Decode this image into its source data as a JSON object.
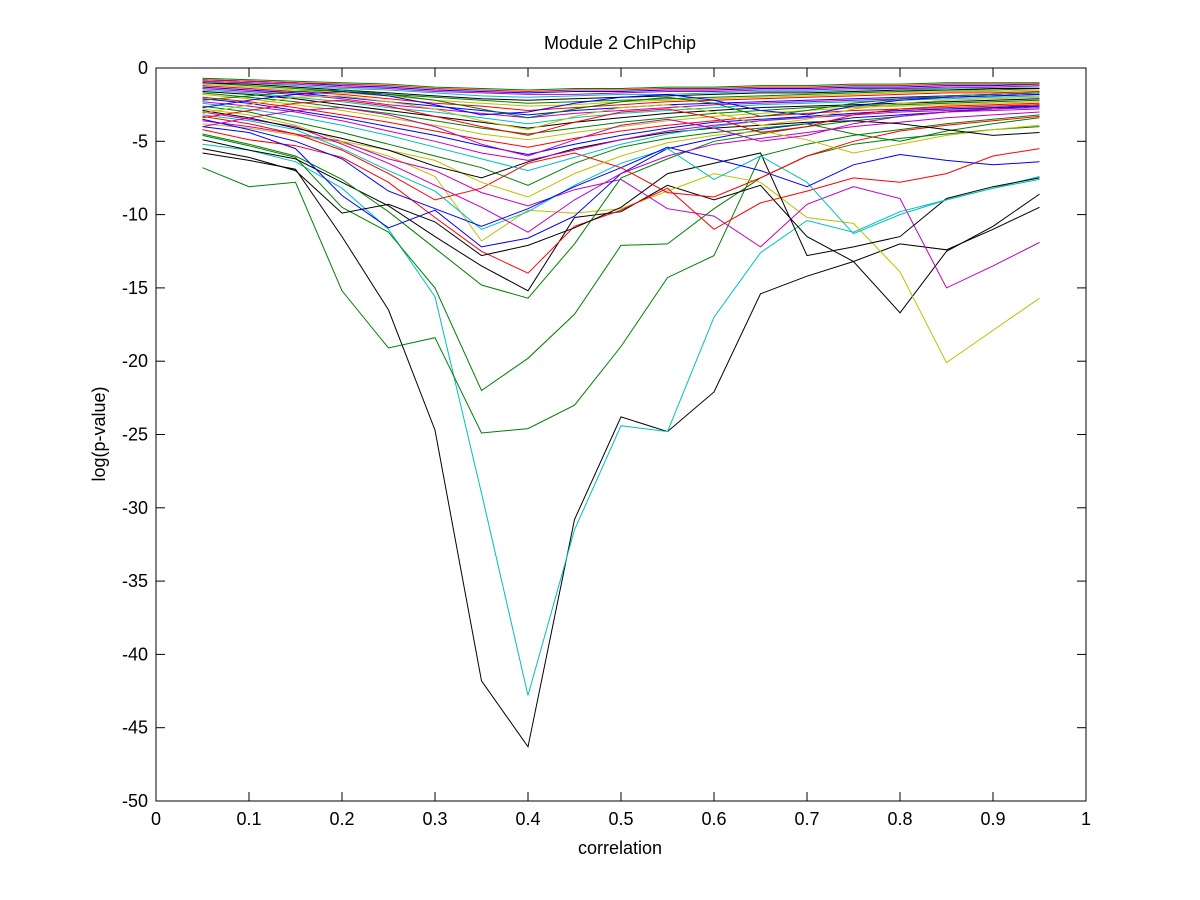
{
  "chart_data": {
    "type": "line",
    "title": "Module 2 ChIPchip",
    "xlabel": "correlation",
    "ylabel": "log(p-value)",
    "xlim": [
      0,
      1
    ],
    "ylim": [
      -50,
      0
    ],
    "xticks": [
      0,
      0.1,
      0.2,
      0.3,
      0.4,
      0.5,
      0.6,
      0.7,
      0.8,
      0.9,
      1
    ],
    "xtick_labels": [
      "0",
      "0.1",
      "0.2",
      "0.3",
      "0.4",
      "0.5",
      "0.6",
      "0.7",
      "0.8",
      "0.9",
      "1"
    ],
    "yticks": [
      0,
      -5,
      -10,
      -15,
      -20,
      -25,
      -30,
      -35,
      -40,
      -45,
      -50
    ],
    "ytick_labels": [
      "0",
      "-5",
      "-10",
      "-15",
      "-20",
      "-25",
      "-30",
      "-35",
      "-40",
      "-45",
      "-50"
    ],
    "grid": false,
    "legend": "none",
    "x": [
      0.05,
      0.1,
      0.15,
      0.2,
      0.25,
      0.3,
      0.35,
      0.4,
      0.45,
      0.5,
      0.55,
      0.6,
      0.65,
      0.7,
      0.75,
      0.8,
      0.85,
      0.9,
      0.95
    ],
    "series": [
      {
        "color": "#000000",
        "values": [
          -5.8,
          -6.3,
          -6.9,
          -11.5,
          -16.5,
          -24.7,
          -41.8,
          -46.3,
          -30.8,
          -23.8,
          -24.8,
          -22.1,
          -15.4,
          -14.2,
          -13.2,
          -12.0,
          -12.4,
          -11.0,
          -9.5
        ]
      },
      {
        "color": "#00bfbf",
        "values": [
          -5.2,
          -5.6,
          -6.4,
          -8.2,
          -11.0,
          -15.6,
          -29.0,
          -42.8,
          -31.5,
          -24.4,
          -24.8,
          -17.0,
          -12.6,
          -10.4,
          -11.2,
          -9.8,
          -9.0,
          -8.2,
          -7.4
        ]
      },
      {
        "color": "#007f00",
        "values": [
          -6.8,
          -8.1,
          -7.8,
          -15.2,
          -19.1,
          -18.4,
          -24.9,
          -24.6,
          -23.0,
          -19.0,
          -14.3,
          -12.8,
          -6.0,
          -5.2,
          -4.6,
          -4.2,
          -3.8,
          -3.5,
          -3.2
        ]
      },
      {
        "color": "#007f00",
        "values": [
          -4.6,
          -5.3,
          -6.1,
          -9.5,
          -11.2,
          -15.0,
          -22.0,
          -19.8,
          -16.8,
          -12.1,
          -12.0,
          -9.6,
          -7.5,
          -6.0,
          -5.2,
          -4.8,
          -4.5,
          -4.2,
          -4.0
        ]
      },
      {
        "color": "#000000",
        "values": [
          -4.9,
          -5.6,
          -6.2,
          -7.8,
          -9.4,
          -11.5,
          -13.5,
          -15.2,
          -10.2,
          -9.8,
          -8.0,
          -9.0,
          -8.0,
          -11.5,
          -13.2,
          -16.7,
          -12.5,
          -10.8,
          -8.6
        ]
      },
      {
        "color": "#bfbf00",
        "values": [
          -3.8,
          -4.1,
          -4.6,
          -5.1,
          -6.0,
          -7.4,
          -11.8,
          -9.7,
          -9.9,
          -9.6,
          -8.4,
          -7.2,
          -7.8,
          -10.2,
          -10.6,
          -13.9,
          -20.1,
          -17.9,
          -15.7
        ]
      },
      {
        "color": "#bf00bf",
        "values": [
          -3.6,
          -4.0,
          -4.5,
          -5.0,
          -6.2,
          -7.0,
          -8.5,
          -9.4,
          -8.3,
          -7.6,
          -9.6,
          -10.1,
          -12.2,
          -9.3,
          -8.1,
          -8.9,
          -15.0,
          -13.5,
          -11.9
        ]
      },
      {
        "color": "#ff0000",
        "values": [
          -4.2,
          -4.9,
          -5.3,
          -6.1,
          -7.8,
          -10.2,
          -12.5,
          -14.0,
          -10.8,
          -9.7,
          -8.2,
          -11.0,
          -9.2,
          -8.4,
          -7.5,
          -7.8,
          -7.2,
          -6.0,
          -5.5
        ]
      },
      {
        "color": "#007f00",
        "values": [
          -4.5,
          -5.2,
          -6.0,
          -7.6,
          -9.8,
          -12.3,
          -14.8,
          -15.7,
          -12.0,
          -7.5,
          -6.2,
          -5.0,
          -4.5,
          -4.0,
          -3.6,
          -3.3,
          -3.0,
          -2.7,
          -2.5
        ]
      },
      {
        "color": "#000000",
        "values": [
          -5.5,
          -6.1,
          -7.0,
          -9.9,
          -9.3,
          -10.5,
          -12.8,
          -12.1,
          -10.9,
          -9.5,
          -7.2,
          -6.5,
          -5.8,
          -12.8,
          -12.2,
          -11.5,
          -8.9,
          -8.1,
          -7.5
        ]
      },
      {
        "color": "#0000ff",
        "values": [
          -4.0,
          -4.4,
          -5.5,
          -8.7,
          -10.9,
          -9.7,
          -12.2,
          -11.6,
          -10.1,
          -7.2,
          -5.5,
          -4.8,
          -4.2,
          -3.8,
          -3.4,
          -3.2,
          -3.0,
          -2.8,
          -2.6
        ]
      },
      {
        "color": "#00bfbf",
        "values": [
          -3.2,
          -3.6,
          -4.2,
          -5.5,
          -7.0,
          -8.4,
          -11.0,
          -9.8,
          -8.0,
          -6.5,
          -5.5,
          -7.6,
          -6.0,
          -7.8,
          -11.3,
          -10.0,
          -9.0,
          -8.2,
          -7.6
        ]
      },
      {
        "color": "#bf00bf",
        "values": [
          -3.0,
          -3.5,
          -4.0,
          -5.2,
          -6.5,
          -8.0,
          -9.5,
          -11.2,
          -9.0,
          -7.2,
          -6.0,
          -5.2,
          -4.8,
          -4.4,
          -4.0,
          -3.7,
          -3.4,
          -3.2,
          -3.0
        ]
      },
      {
        "color": "#0000ff",
        "values": [
          -3.5,
          -4.2,
          -5.0,
          -6.2,
          -8.4,
          -9.6,
          -10.8,
          -9.6,
          -8.1,
          -6.8,
          -5.4,
          -6.2,
          -7.0,
          -8.1,
          -6.6,
          -5.9,
          -6.3,
          -6.6,
          -6.4
        ]
      },
      {
        "color": "#ff0000",
        "values": [
          -3.3,
          -3.8,
          -4.5,
          -5.6,
          -7.2,
          -9.0,
          -8.2,
          -6.5,
          -5.8,
          -6.8,
          -8.5,
          -8.8,
          -7.5,
          -6.0,
          -5.0,
          -4.3,
          -3.9,
          -3.6,
          -3.3
        ]
      },
      {
        "color": "#bfbf00",
        "values": [
          -2.8,
          -3.2,
          -3.9,
          -5.0,
          -5.6,
          -6.3,
          -7.8,
          -8.8,
          -7.2,
          -6.0,
          -5.1,
          -4.6,
          -4.3,
          -4.9,
          -5.8,
          -5.2,
          -4.6,
          -4.2,
          -3.9
        ]
      },
      {
        "color": "#007f00",
        "values": [
          -2.6,
          -3.0,
          -3.7,
          -4.4,
          -5.2,
          -6.0,
          -6.8,
          -8.0,
          -6.5,
          -5.4,
          -4.8,
          -4.4,
          -4.1,
          -3.8,
          -4.5,
          -5.0,
          -4.3,
          -3.8,
          -3.4
        ]
      },
      {
        "color": "#000000",
        "values": [
          -2.9,
          -3.4,
          -4.1,
          -4.8,
          -5.6,
          -6.7,
          -7.5,
          -6.4,
          -5.5,
          -4.9,
          -4.4,
          -4.1,
          -3.9,
          -3.7,
          -3.6,
          -3.8,
          -4.2,
          -4.6,
          -4.4
        ]
      },
      {
        "color": "#00bfbf",
        "values": [
          -2.4,
          -2.8,
          -3.3,
          -3.9,
          -4.6,
          -5.4,
          -6.2,
          -7.0,
          -6.1,
          -5.2,
          -4.5,
          -4.0,
          -3.6,
          -3.3,
          -3.1,
          -2.9,
          -2.8,
          -2.7,
          -2.6
        ]
      },
      {
        "color": "#bf00bf",
        "values": [
          -2.3,
          -2.6,
          -3.0,
          -3.6,
          -4.3,
          -5.0,
          -5.8,
          -6.3,
          -5.6,
          -4.9,
          -4.3,
          -3.9,
          -3.6,
          -3.4,
          -3.2,
          -3.0,
          -2.9,
          -2.8,
          -2.7
        ]
      },
      {
        "color": "#0000ff",
        "values": [
          -2.1,
          -2.4,
          -2.9,
          -3.4,
          -4.0,
          -4.6,
          -5.3,
          -5.9,
          -5.2,
          -4.6,
          -4.1,
          -3.7,
          -3.5,
          -3.3,
          -3.1,
          -2.9,
          -2.8,
          -2.7,
          -2.6
        ]
      },
      {
        "color": "#ff0000",
        "values": [
          -2.0,
          -2.3,
          -2.7,
          -3.2,
          -3.7,
          -4.3,
          -4.9,
          -5.4,
          -4.8,
          -4.3,
          -3.9,
          -3.6,
          -3.3,
          -3.1,
          -2.9,
          -2.8,
          -2.7,
          -2.6,
          -2.5
        ]
      },
      {
        "color": "#bfbf00",
        "values": [
          -1.8,
          -2.1,
          -2.5,
          -2.9,
          -3.4,
          -3.9,
          -4.5,
          -4.9,
          -4.4,
          -4.0,
          -3.6,
          -3.3,
          -3.1,
          -2.9,
          -2.7,
          -2.6,
          -2.5,
          -2.4,
          -2.3
        ]
      },
      {
        "color": "#007f00",
        "values": [
          -1.7,
          -2.0,
          -2.3,
          -2.7,
          -3.1,
          -3.6,
          -4.1,
          -4.5,
          -4.1,
          -3.7,
          -3.4,
          -3.1,
          -2.9,
          -2.7,
          -2.6,
          -2.5,
          -2.4,
          -2.3,
          -2.2
        ]
      },
      {
        "color": "#000000",
        "values": [
          -1.6,
          -1.8,
          -2.1,
          -2.5,
          -2.9,
          -3.3,
          -3.7,
          -4.1,
          -3.7,
          -3.4,
          -3.1,
          -2.9,
          -2.7,
          -2.6,
          -2.5,
          -2.4,
          -2.3,
          -2.2,
          -2.1
        ]
      },
      {
        "color": "#00bfbf",
        "values": [
          -1.5,
          -1.7,
          -2.0,
          -2.3,
          -2.7,
          -3.0,
          -3.4,
          -3.8,
          -3.4,
          -3.1,
          -2.9,
          -2.7,
          -2.5,
          -2.4,
          -2.3,
          -2.2,
          -2.1,
          -2.0,
          -1.9
        ]
      },
      {
        "color": "#bf00bf",
        "values": [
          -1.4,
          -1.6,
          -1.8,
          -2.1,
          -2.5,
          -2.8,
          -3.1,
          -3.4,
          -3.1,
          -2.9,
          -2.7,
          -2.5,
          -2.4,
          -2.3,
          -2.2,
          -2.1,
          -2.0,
          -1.9,
          -1.8
        ]
      },
      {
        "color": "#0000ff",
        "values": [
          -1.3,
          -1.5,
          -1.7,
          -2.0,
          -2.3,
          -2.6,
          -2.9,
          -3.2,
          -2.9,
          -2.7,
          -2.5,
          -2.4,
          -2.3,
          -2.2,
          -2.1,
          -2.0,
          -1.9,
          -1.8,
          -1.7
        ]
      },
      {
        "color": "#ff0000",
        "values": [
          -1.2,
          -1.4,
          -1.6,
          -1.8,
          -2.1,
          -2.4,
          -2.6,
          -2.9,
          -2.7,
          -2.5,
          -2.3,
          -2.2,
          -2.1,
          -2.0,
          -1.9,
          -1.8,
          -1.7,
          -1.7,
          -1.6
        ]
      },
      {
        "color": "#bfbf00",
        "values": [
          -1.1,
          -1.3,
          -1.5,
          -1.7,
          -1.9,
          -2.2,
          -2.4,
          -2.6,
          -2.5,
          -2.3,
          -2.2,
          -2.1,
          -2.0,
          -1.9,
          -1.8,
          -1.7,
          -1.6,
          -1.6,
          -1.5
        ]
      },
      {
        "color": "#007f00",
        "values": [
          -1.0,
          -1.2,
          -1.4,
          -1.6,
          -1.8,
          -2.0,
          -2.2,
          -2.4,
          -2.3,
          -2.2,
          -2.1,
          -2.0,
          -1.9,
          -1.8,
          -1.7,
          -1.6,
          -1.5,
          -1.5,
          -1.4
        ]
      },
      {
        "color": "#000000",
        "values": [
          -1.0,
          -1.1,
          -1.3,
          -1.5,
          -1.7,
          -1.9,
          -2.1,
          -2.2,
          -2.1,
          -2.0,
          -1.9,
          -1.8,
          -1.7,
          -1.7,
          -1.6,
          -1.5,
          -1.5,
          -1.4,
          -1.4
        ]
      },
      {
        "color": "#00bfbf",
        "values": [
          -0.9,
          -1.0,
          -1.2,
          -1.4,
          -1.5,
          -1.7,
          -1.9,
          -2.0,
          -1.9,
          -1.8,
          -1.8,
          -1.7,
          -1.6,
          -1.6,
          -1.5,
          -1.4,
          -1.4,
          -1.3,
          -1.3
        ]
      },
      {
        "color": "#bf00bf",
        "values": [
          -0.9,
          -1.0,
          -1.1,
          -1.3,
          -1.4,
          -1.6,
          -1.7,
          -1.8,
          -1.8,
          -1.7,
          -1.6,
          -1.6,
          -1.5,
          -1.5,
          -1.4,
          -1.4,
          -1.3,
          -1.3,
          -1.2
        ]
      },
      {
        "color": "#0000ff",
        "values": [
          -0.8,
          -0.9,
          -1.0,
          -1.2,
          -1.3,
          -1.5,
          -1.6,
          -1.7,
          -1.6,
          -1.6,
          -1.5,
          -1.5,
          -1.4,
          -1.4,
          -1.3,
          -1.3,
          -1.2,
          -1.2,
          -1.1
        ]
      },
      {
        "color": "#ff0000",
        "values": [
          -0.8,
          -0.9,
          -1.0,
          -1.1,
          -1.2,
          -1.4,
          -1.5,
          -1.6,
          -1.5,
          -1.5,
          -1.4,
          -1.4,
          -1.3,
          -1.3,
          -1.2,
          -1.2,
          -1.1,
          -1.1,
          -1.1
        ]
      },
      {
        "color": "#007f00",
        "values": [
          -0.7,
          -0.8,
          -0.9,
          -1.0,
          -1.1,
          -1.3,
          -1.4,
          -1.5,
          -1.4,
          -1.4,
          -1.3,
          -1.3,
          -1.2,
          -1.2,
          -1.1,
          -1.1,
          -1.0,
          -1.0,
          -1.0
        ]
      },
      {
        "color": "#bfbf00",
        "values": [
          -3.1,
          -2.5,
          -2.0,
          -1.9,
          -2.3,
          -2.8,
          -3.6,
          -4.2,
          -3.3,
          -2.7,
          -2.5,
          -3.0,
          -3.9,
          -3.5,
          -2.8,
          -2.4,
          -2.2,
          -2.1,
          -2.0
        ]
      },
      {
        "color": "#0000ff",
        "values": [
          -2.7,
          -2.2,
          -1.8,
          -1.6,
          -1.9,
          -2.5,
          -3.2,
          -3.0,
          -2.4,
          -2.0,
          -1.8,
          -2.2,
          -2.9,
          -3.2,
          -2.6,
          -2.2,
          -2.0,
          -1.9,
          -1.8
        ]
      },
      {
        "color": "#ff0000",
        "values": [
          -3.4,
          -2.9,
          -2.4,
          -2.2,
          -2.6,
          -3.3,
          -4.0,
          -4.6,
          -3.7,
          -3.0,
          -2.8,
          -3.4,
          -4.4,
          -4.0,
          -3.2,
          -2.8,
          -2.6,
          -2.5,
          -2.4
        ]
      },
      {
        "color": "#007f00",
        "values": [
          -2.2,
          -1.9,
          -1.6,
          -1.5,
          -1.8,
          -2.2,
          -2.8,
          -3.4,
          -2.8,
          -2.3,
          -2.0,
          -2.4,
          -3.3,
          -2.9,
          -2.4,
          -2.1,
          -1.9,
          -1.8,
          -1.7
        ]
      },
      {
        "color": "#bf00bf",
        "values": [
          -4.0,
          -3.4,
          -2.9,
          -2.7,
          -3.2,
          -4.0,
          -5.2,
          -6.0,
          -4.9,
          -3.9,
          -3.5,
          -4.1,
          -5.0,
          -4.6,
          -3.8,
          -3.3,
          -3.0,
          -2.9,
          -2.8
        ]
      }
    ]
  }
}
